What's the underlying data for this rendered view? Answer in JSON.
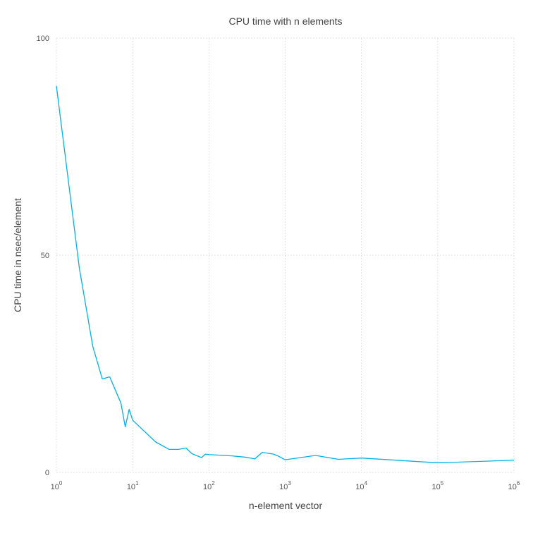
{
  "chart_data": {
    "type": "line",
    "title": "CPU time with n elements",
    "xlabel": "n-element vector",
    "ylabel": "CPU time in nsec/element",
    "x_scale": "log10",
    "xlim": [
      1,
      1000000
    ],
    "ylim": [
      0,
      100
    ],
    "grid": true,
    "legend": "none",
    "x_ticks": [
      {
        "base": "10",
        "exp": "0",
        "value": 1
      },
      {
        "base": "10",
        "exp": "1",
        "value": 10
      },
      {
        "base": "10",
        "exp": "2",
        "value": 100
      },
      {
        "base": "10",
        "exp": "3",
        "value": 1000
      },
      {
        "base": "10",
        "exp": "4",
        "value": 10000
      },
      {
        "base": "10",
        "exp": "5",
        "value": 100000
      },
      {
        "base": "10",
        "exp": "6",
        "value": 1000000
      }
    ],
    "y_ticks": [
      {
        "label": "0",
        "value": 0
      },
      {
        "label": "50",
        "value": 50
      },
      {
        "label": "100",
        "value": 100
      }
    ],
    "series": [
      {
        "color": "#00b2e5",
        "x": [
          1,
          2,
          3,
          4,
          5,
          7,
          8,
          9,
          10,
          20,
          30,
          40,
          50,
          60,
          80,
          90,
          100,
          200,
          300,
          400,
          500,
          700,
          800,
          1000,
          2500,
          5000,
          10000,
          100000,
          1000000
        ],
        "y": [
          89,
          47,
          29,
          21.5,
          22,
          16,
          10.5,
          14.5,
          12,
          7,
          5.3,
          5.3,
          5.6,
          4.3,
          3.4,
          4.2,
          4.1,
          3.8,
          3.5,
          3.1,
          4.6,
          4.2,
          3.8,
          2.9,
          3.9,
          3.0,
          3.3,
          2.2,
          2.8
        ]
      }
    ]
  }
}
